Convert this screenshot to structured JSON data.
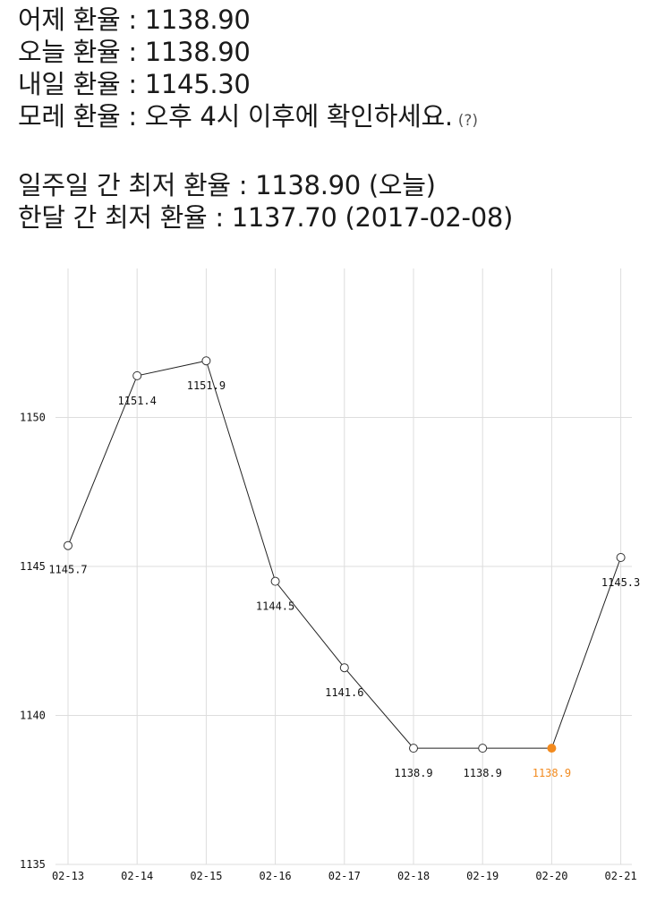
{
  "rates": {
    "yesterday": "어제 환율 : 1138.90",
    "today": "오늘 환율 : 1138.90",
    "tomorrow": "내일 환율 : 1145.30",
    "day_after": "모레 환율 : 오후 4시 이후에 확인하세요.",
    "day_after_hint": "(?)",
    "week_low": "일주일 간 최저 환율 : 1138.90 (오늘)",
    "month_low": "한달 간 최저 환율 : 1137.70 (2017-02-08)"
  },
  "colors": {
    "line": "#222222",
    "grid": "#dddddd",
    "highlight": "#f28a1e"
  },
  "chart_data": {
    "type": "line",
    "title": "",
    "xlabel": "",
    "ylabel": "",
    "categories": [
      "02-13",
      "02-14",
      "02-15",
      "02-16",
      "02-17",
      "02-18",
      "02-19",
      "02-20",
      "02-21"
    ],
    "values": [
      1145.7,
      1151.4,
      1151.9,
      1144.5,
      1141.6,
      1138.9,
      1138.9,
      1138.9,
      1145.3
    ],
    "data_labels": [
      "1145.7",
      "1151.4",
      "1151.9",
      "1144.5",
      "1141.6",
      "1138.9",
      "1138.9",
      "1138.9",
      "1145.3"
    ],
    "highlight_index": 7,
    "ylim": [
      1135,
      1155
    ],
    "yticks": [
      "1135",
      "1140",
      "1145",
      "1150"
    ],
    "grid": true,
    "legend": "none"
  }
}
